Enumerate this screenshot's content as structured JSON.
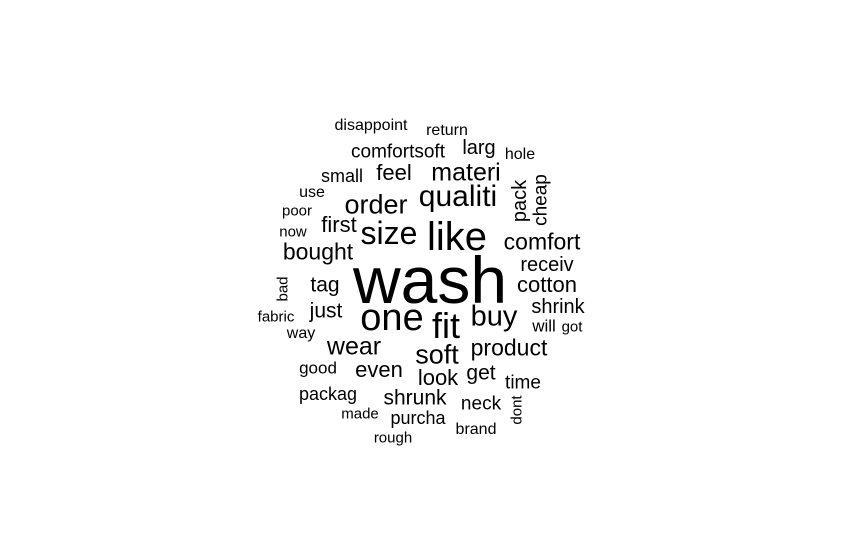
{
  "word_cloud": {
    "text_color": "#000000",
    "background_color": "#ffffff",
    "words": [
      {
        "text": "wash",
        "rank": 1
      },
      {
        "text": "like",
        "rank": 2
      },
      {
        "text": "one",
        "rank": 3
      },
      {
        "text": "fit",
        "rank": 4
      },
      {
        "text": "size",
        "rank": 5
      },
      {
        "text": "qualiti",
        "rank": 6
      },
      {
        "text": "order",
        "rank": 7
      },
      {
        "text": "buy",
        "rank": 8
      },
      {
        "text": "soft",
        "rank": 9
      },
      {
        "text": "materi",
        "rank": 10
      },
      {
        "text": "wear",
        "rank": 11
      },
      {
        "text": "comfort",
        "rank": 12
      },
      {
        "text": "product",
        "rank": 13
      },
      {
        "text": "bought",
        "rank": 14
      },
      {
        "text": "cotton",
        "rank": 15
      },
      {
        "text": "feel",
        "rank": 16
      },
      {
        "text": "first",
        "rank": 17
      },
      {
        "text": "just",
        "rank": 18
      },
      {
        "text": "even",
        "rank": 19
      },
      {
        "text": "tag",
        "rank": 20
      },
      {
        "text": "look",
        "rank": 21
      },
      {
        "text": "shrunk",
        "rank": 22
      },
      {
        "text": "comfortsoft",
        "rank": 23
      },
      {
        "text": "receiv",
        "rank": 24
      },
      {
        "text": "shrink",
        "rank": 25
      },
      {
        "text": "get",
        "rank": 26
      },
      {
        "text": "larg",
        "rank": 27
      },
      {
        "text": "pack",
        "rank": 28
      },
      {
        "text": "cheap",
        "rank": 29
      },
      {
        "text": "time",
        "rank": 30
      },
      {
        "text": "neck",
        "rank": 31
      },
      {
        "text": "small",
        "rank": 32
      },
      {
        "text": "will",
        "rank": 33
      },
      {
        "text": "good",
        "rank": 34
      },
      {
        "text": "packag",
        "rank": 35
      },
      {
        "text": "purcha",
        "rank": 36
      },
      {
        "text": "disappoint",
        "rank": 37
      },
      {
        "text": "return",
        "rank": 38
      },
      {
        "text": "use",
        "rank": 39
      },
      {
        "text": "hole",
        "rank": 40
      },
      {
        "text": "way",
        "rank": 41
      },
      {
        "text": "brand",
        "rank": 42
      },
      {
        "text": "got",
        "rank": 43
      },
      {
        "text": "poor",
        "rank": 44
      },
      {
        "text": "now",
        "rank": 45
      },
      {
        "text": "fabric",
        "rank": 46
      },
      {
        "text": "bad",
        "rank": 47
      },
      {
        "text": "made",
        "rank": 48
      },
      {
        "text": "rough",
        "rank": 49
      },
      {
        "text": "dont",
        "rank": 50
      }
    ]
  }
}
